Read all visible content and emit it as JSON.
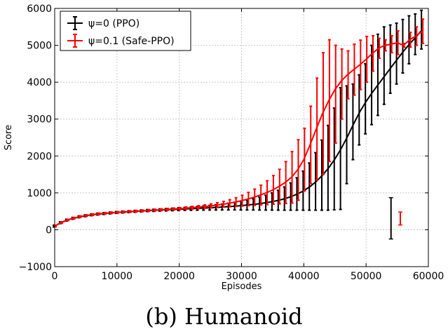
{
  "caption": "(b) Humanoid",
  "chart_data": {
    "type": "line",
    "title": "",
    "xlabel": "Episodes",
    "ylabel": "Score",
    "xlim": [
      0,
      60000
    ],
    "ylim": [
      -1000,
      6000
    ],
    "xticks": [
      0,
      10000,
      20000,
      30000,
      40000,
      50000,
      60000
    ],
    "yticks": [
      -1000,
      0,
      1000,
      2000,
      3000,
      4000,
      5000,
      6000
    ],
    "xtick_labels": [
      "0",
      "10000",
      "20000",
      "30000",
      "40000",
      "50000",
      "60000"
    ],
    "ytick_labels": [
      "−1000",
      "0",
      "1000",
      "2000",
      "3000",
      "4000",
      "5000",
      "6000"
    ],
    "grid": true,
    "legend_position": "top-left",
    "x": [
      0,
      1000,
      2000,
      3000,
      4000,
      5000,
      6000,
      7000,
      8000,
      9000,
      10000,
      11000,
      12000,
      13000,
      14000,
      15000,
      16000,
      17000,
      18000,
      19000,
      20000,
      21000,
      22000,
      23000,
      24000,
      25000,
      26000,
      27000,
      28000,
      29000,
      30000,
      31000,
      32000,
      33000,
      34000,
      35000,
      36000,
      37000,
      38000,
      39000,
      40000,
      41000,
      42000,
      43000,
      44000,
      45000,
      46000,
      47000,
      48000,
      49000,
      50000,
      51000,
      52000,
      53000,
      54000,
      55000,
      56000,
      57000,
      58000,
      59000
    ],
    "series": [
      {
        "name": "ψ=0 (PPO)",
        "color": "#000000",
        "values": [
          100,
          190,
          260,
          310,
          350,
          380,
          405,
          425,
          440,
          455,
          470,
          480,
          490,
          500,
          510,
          520,
          527,
          535,
          542,
          550,
          558,
          565,
          572,
          580,
          588,
          597,
          607,
          617,
          628,
          640,
          655,
          672,
          690,
          710,
          735,
          765,
          800,
          845,
          900,
          970,
          1060,
          1170,
          1310,
          1480,
          1680,
          1920,
          2200,
          2520,
          2870,
          3200,
          3480,
          3720,
          3950,
          4170,
          4400,
          4620,
          4840,
          5040,
          5220,
          5420
        ],
        "err_low": [
          75,
          165,
          235,
          285,
          325,
          355,
          380,
          400,
          415,
          430,
          445,
          455,
          465,
          475,
          484,
          492,
          498,
          505,
          510,
          516,
          520,
          524,
          527,
          530,
          532,
          534,
          535,
          536,
          537,
          537,
          537,
          536,
          535,
          534,
          533,
          532,
          531,
          530,
          530,
          530,
          530,
          530,
          530,
          530,
          530,
          540,
          550,
          1250,
          1900,
          2300,
          2600,
          2850,
          3100,
          3400,
          3700,
          3950,
          4250,
          4500,
          4750,
          4900
        ],
        "err_high": [
          125,
          215,
          285,
          335,
          375,
          405,
          430,
          450,
          465,
          480,
          495,
          505,
          515,
          525,
          536,
          548,
          556,
          565,
          574,
          584,
          596,
          606,
          617,
          630,
          644,
          660,
          679,
          698,
          719,
          743,
          773,
          808,
          845,
          886,
          937,
          998,
          1069,
          1160,
          1270,
          1410,
          1590,
          1810,
          2090,
          2430,
          2830,
          3300,
          3850,
          3900,
          3950,
          4200,
          4500,
          5000,
          5300,
          5500,
          5550,
          5600,
          5700,
          5800,
          5850,
          5950
        ]
      },
      {
        "name": "ψ=0.1 (Safe-PPO)",
        "color": "#ff0000",
        "values": [
          100,
          195,
          265,
          315,
          355,
          385,
          410,
          430,
          445,
          460,
          472,
          483,
          493,
          503,
          513,
          523,
          532,
          542,
          552,
          562,
          573,
          585,
          598,
          612,
          628,
          646,
          666,
          690,
          718,
          750,
          788,
          832,
          882,
          940,
          1005,
          1080,
          1170,
          1280,
          1420,
          1620,
          1900,
          2300,
          2730,
          3150,
          3500,
          3800,
          4030,
          4200,
          4340,
          4470,
          4620,
          4780,
          4920,
          5000,
          5030,
          5070,
          5000,
          5150,
          5250,
          5380
        ],
        "err_low": [
          80,
          175,
          245,
          295,
          335,
          365,
          390,
          410,
          425,
          440,
          452,
          463,
          473,
          483,
          492,
          501,
          509,
          518,
          527,
          535,
          544,
          553,
          562,
          571,
          581,
          591,
          601,
          612,
          622,
          632,
          642,
          652,
          662,
          672,
          682,
          692,
          702,
          712,
          722,
          800,
          1050,
          1250,
          1350,
          1500,
          1850,
          2350,
          3000,
          3550,
          3650,
          3800,
          4000,
          4300,
          4650,
          4850,
          4800,
          4750,
          4950,
          4950,
          5000,
          5050
        ],
        "err_high": [
          120,
          215,
          285,
          335,
          375,
          405,
          430,
          450,
          465,
          480,
          492,
          503,
          513,
          523,
          534,
          545,
          555,
          566,
          577,
          589,
          602,
          617,
          634,
          653,
          675,
          701,
          731,
          768,
          814,
          868,
          934,
          1012,
          1102,
          1208,
          1328,
          1468,
          1638,
          1848,
          2118,
          2440,
          2750,
          3350,
          4110,
          4800,
          5150,
          5000,
          4900,
          4850,
          5030,
          5140,
          5240,
          5260,
          5190,
          5150,
          5260,
          5390,
          5050,
          5350,
          5500,
          5710
        ]
      }
    ],
    "annotations": [
      {
        "kind": "error-bar",
        "color": "#000000",
        "x": 54000,
        "low": -250,
        "high": 870
      },
      {
        "kind": "error-bar",
        "color": "#ff0000",
        "x": 55500,
        "low": 130,
        "high": 480
      }
    ]
  }
}
